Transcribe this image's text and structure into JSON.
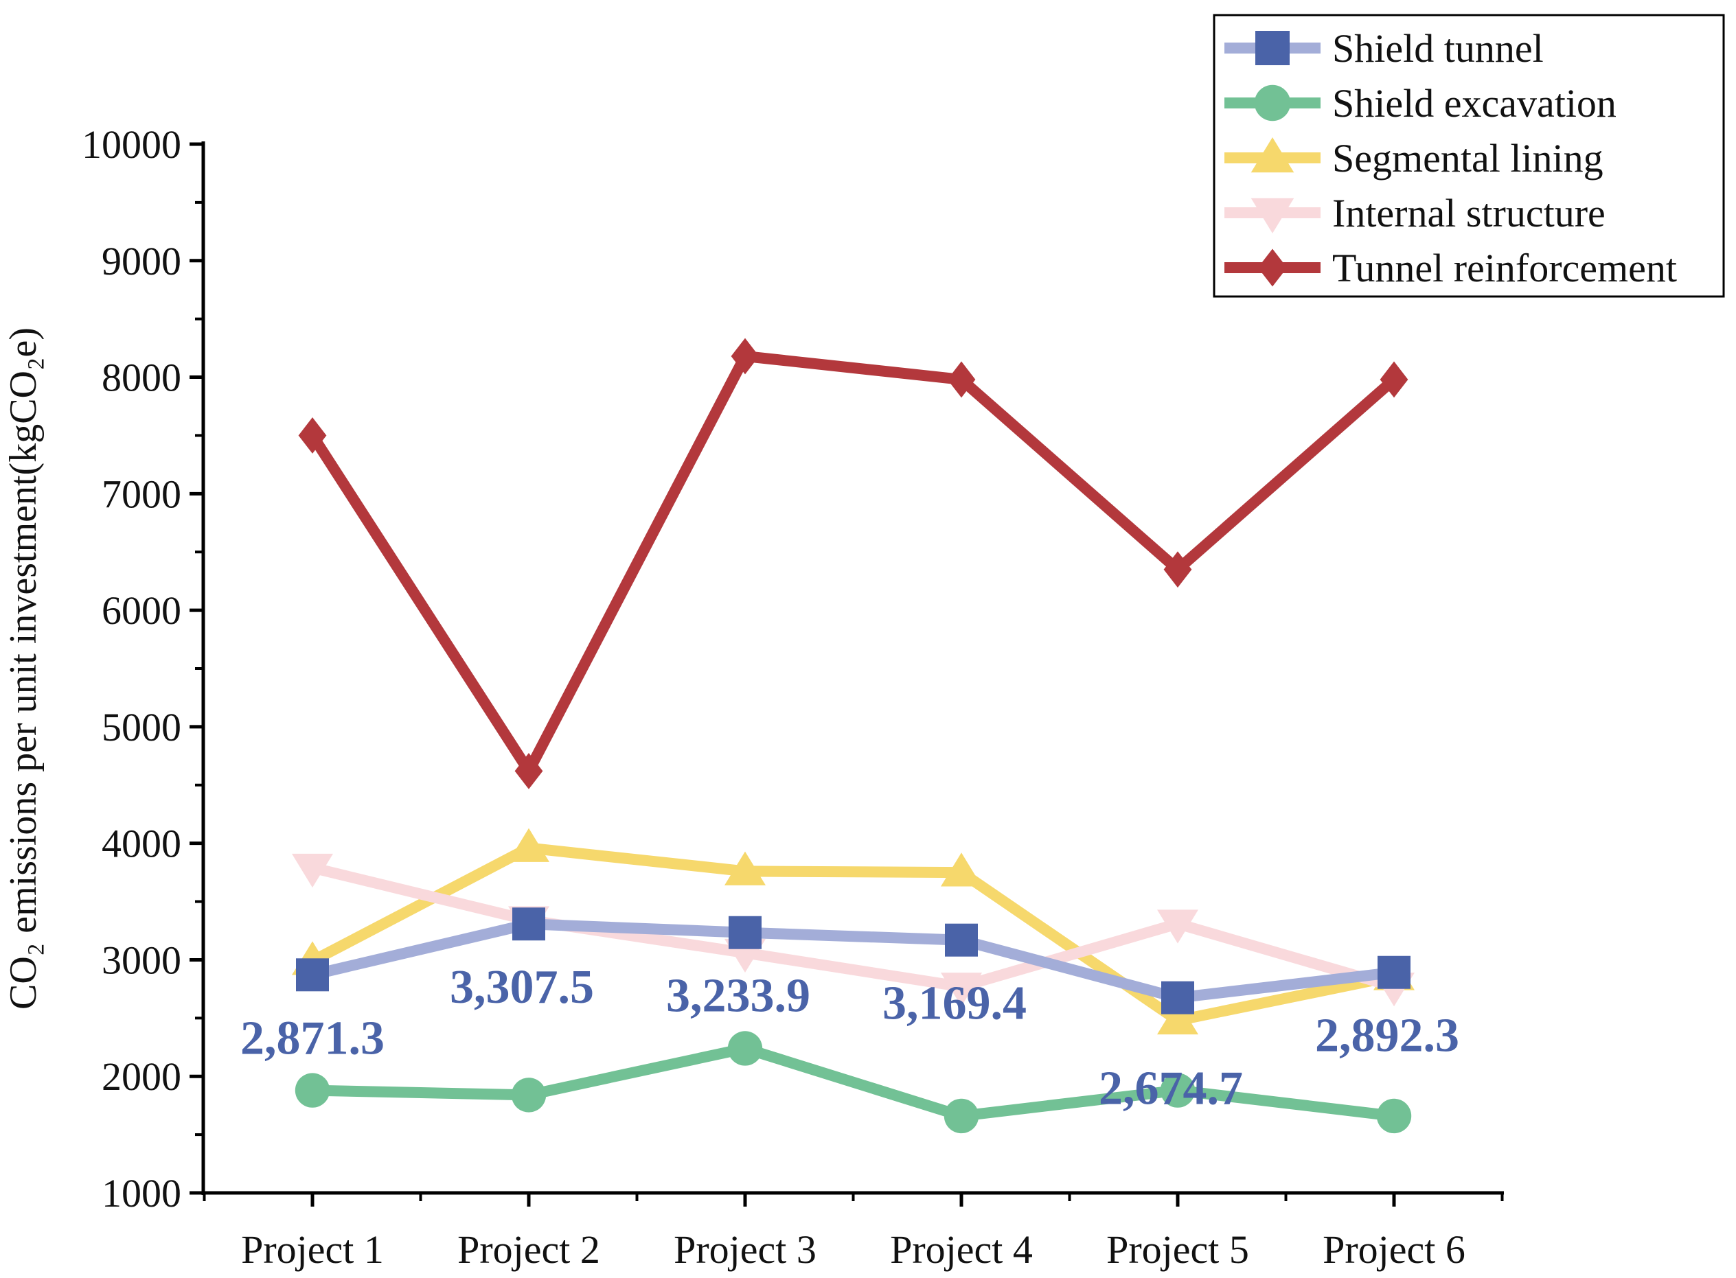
{
  "chart_data": {
    "type": "line",
    "title": "",
    "xlabel": "",
    "ylabel": "CO₂ emissions per unit investment(kgCO₂e)",
    "categories": [
      "Project 1",
      "Project 2",
      "Project 3",
      "Project 4",
      "Project 5",
      "Project 6"
    ],
    "ylim": [
      1000,
      10000
    ],
    "yticks": [
      1000,
      2000,
      3000,
      4000,
      5000,
      6000,
      7000,
      8000,
      9000,
      10000
    ],
    "grid": false,
    "legend_position": "top-right",
    "series": [
      {
        "name": "Shield tunnel",
        "marker": "square",
        "line_color": "#a3add8",
        "marker_color": "#4a63a8",
        "values": [
          2871.3,
          3307.5,
          3233.9,
          3169.4,
          2674.7,
          2892.3
        ]
      },
      {
        "name": "Shield excavation",
        "marker": "circle",
        "line_color": "#72c195",
        "marker_color": "#72c195",
        "values": [
          1880,
          1840,
          2240,
          1660,
          1880,
          1660
        ]
      },
      {
        "name": "Segmental lining",
        "marker": "triangle-up",
        "line_color": "#f6d86c",
        "marker_color": "#f6d86c",
        "values": [
          2990,
          3960,
          3760,
          3750,
          2480,
          2860
        ]
      },
      {
        "name": "Internal structure",
        "marker": "triangle-down",
        "line_color": "#f9d9dc",
        "marker_color": "#f9d9dc",
        "values": [
          3790,
          3340,
          3060,
          2770,
          3310,
          2770
        ]
      },
      {
        "name": "Tunnel reinforcement",
        "marker": "diamond",
        "line_color": "#b3383c",
        "marker_color": "#b3383c",
        "values": [
          7500,
          4620,
          8180,
          7980,
          6350,
          7980
        ]
      }
    ],
    "annotations": {
      "series": "Shield tunnel",
      "color": "#4a63a8",
      "labels": [
        "2,871.3",
        "3,307.5",
        "3,233.9",
        "3,169.4",
        "2,674.7",
        "2,892.3"
      ]
    }
  }
}
